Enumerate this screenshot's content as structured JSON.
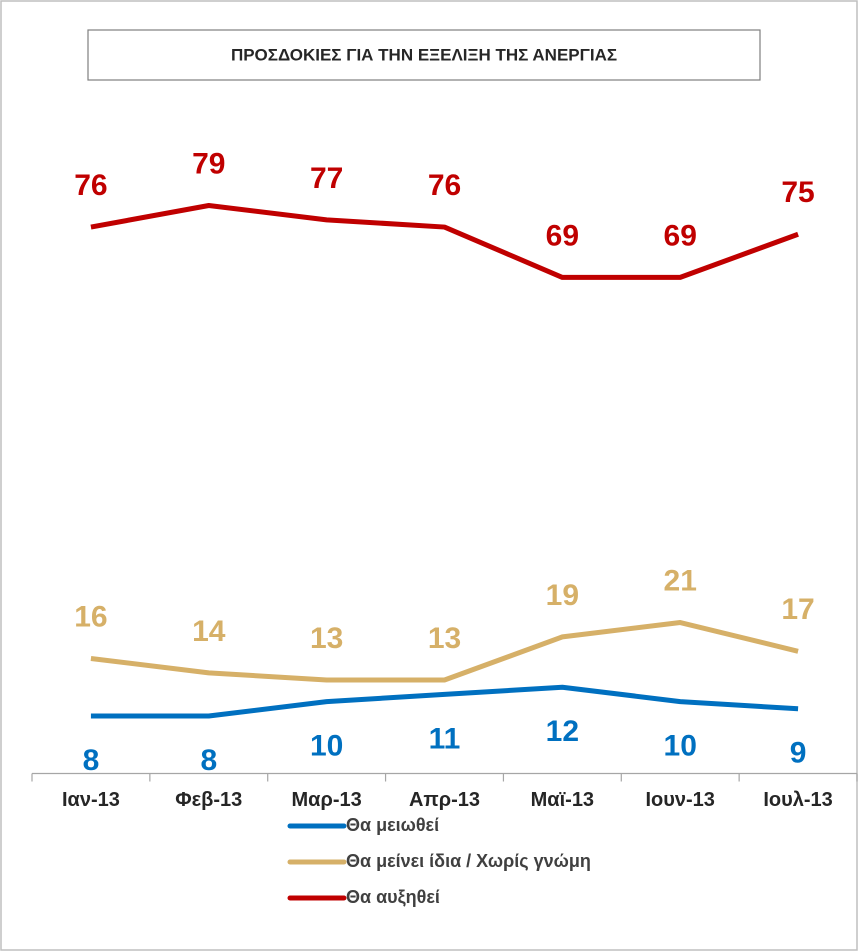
{
  "chart_data": {
    "type": "line",
    "title": "ΠΡΟΣΔΟΚΙΕΣ ΓΙΑ ΤΗΝ ΕΞΕΛΙΞΗ ΤΗΣ ΑΝΕΡΓΙΑΣ",
    "categories": [
      "Ιαν-13",
      "Φεβ-13",
      "Μαρ-13",
      "Απρ-13",
      "Μαϊ-13",
      "Ιουν-13",
      "Ιουλ-13"
    ],
    "series": [
      {
        "name": "Θα μειωθεί",
        "color": "#0070c0",
        "values": [
          8,
          8,
          10,
          11,
          12,
          10,
          9
        ]
      },
      {
        "name": "Θα μείνει ίδια / Χωρίς γνώμη",
        "color": "#d6b068",
        "values": [
          16,
          14,
          13,
          13,
          19,
          21,
          17
        ]
      },
      {
        "name": "Θα αυξηθεί",
        "color": "#c00000",
        "values": [
          76,
          79,
          77,
          76,
          69,
          69,
          75
        ]
      }
    ],
    "ylim": [
      0,
      100
    ],
    "legend": "bottom"
  }
}
